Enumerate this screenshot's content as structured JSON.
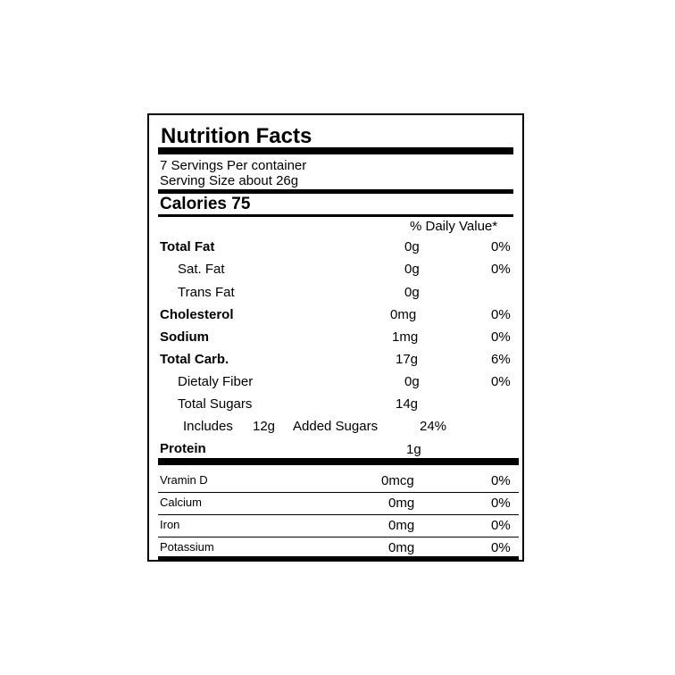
{
  "label": {
    "title": "Nutrition Facts",
    "servings_per_container": "7 Servings Per container",
    "serving_size": "Serving Size about 26g",
    "calories": "Calories  75",
    "daily_value_header": "% Daily Value*"
  },
  "nutrients": [
    {
      "name": "Total Fat",
      "amount": "0g",
      "dv": "0%"
    },
    {
      "name": "Sat. Fat",
      "amount": "0g",
      "dv": "0%"
    },
    {
      "name": "Trans Fat",
      "amount": "0g",
      "dv": ""
    },
    {
      "name": "Cholesterol",
      "amount": "0mg",
      "dv": "0%"
    },
    {
      "name": "Sodium",
      "amount": "1mg",
      "dv": "0%"
    },
    {
      "name": "Total Carb.",
      "amount": "17g",
      "dv": "6%"
    },
    {
      "name": "Dietaly Fiber",
      "amount": "0g",
      "dv": "0%"
    },
    {
      "name": "Total Sugars",
      "amount": "14g",
      "dv": ""
    }
  ],
  "added_sugars": {
    "includes": "Includes",
    "amount": "12g",
    "label": "Added Sugars",
    "dv": "24%"
  },
  "protein": {
    "name": "Protein",
    "amount": "1g"
  },
  "vitamins": [
    {
      "name": "Vramin D",
      "amount": "0mcg",
      "dv": "0%"
    },
    {
      "name": "Calcium",
      "amount": "0mg",
      "dv": "0%"
    },
    {
      "name": "Iron",
      "amount": "0mg",
      "dv": "0%"
    },
    {
      "name": "Potassium",
      "amount": "0mg",
      "dv": "0%"
    }
  ]
}
